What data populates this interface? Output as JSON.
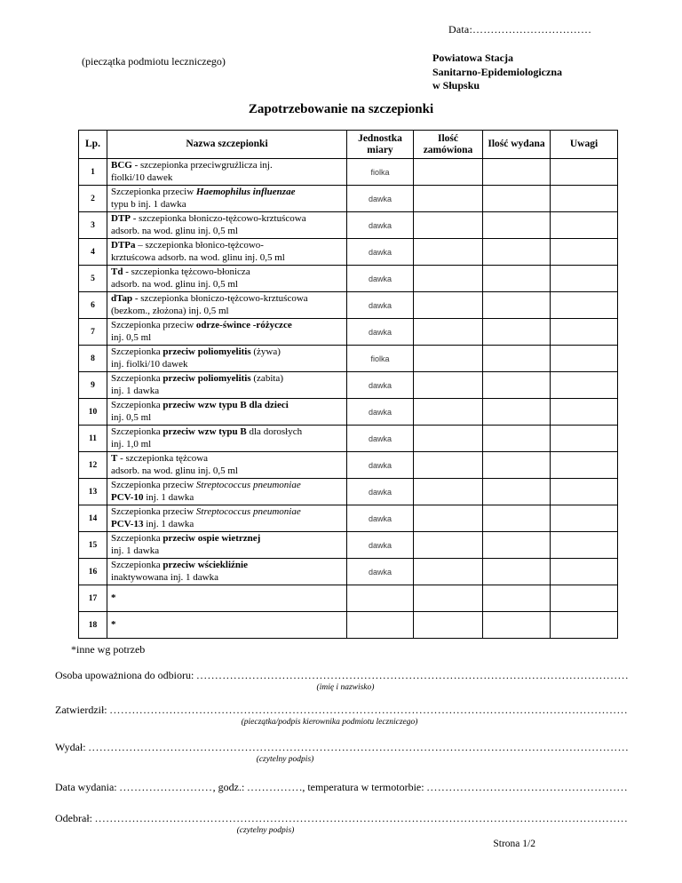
{
  "page": {
    "date_label": "Data:",
    "date_dots": "……………………………",
    "stamp_note": "(pieczątka podmiotu leczniczego)",
    "station_name_lines": [
      "Powiatowa Stacja",
      "Sanitarno-Epidemiologiczna",
      "w Słupsku"
    ],
    "title": "Zapotrzebowanie na szczepionki",
    "footnote": "*inne wg potrzeb",
    "page_number": "Strona 1/2"
  },
  "table": {
    "columns": [
      "Lp.",
      "Nazwa szczepionki",
      "Jednostka miary",
      "Ilość zamówiona",
      "Ilość wydana",
      "Uwagi"
    ],
    "rows": [
      {
        "no": "1",
        "unit": "fiolka",
        "name": [
          [
            {
              "t": "BCG",
              "b": true
            },
            {
              "t": " - szczepionka przeciwgruźlicza inj."
            }
          ],
          [
            {
              "t": "fiolki/10 dawek"
            }
          ]
        ]
      },
      {
        "no": "2",
        "unit": "dawka",
        "name": [
          [
            {
              "t": "Szczepionka przeciw "
            },
            {
              "t": "Haemophilus influenzae",
              "b": true,
              "i": true
            }
          ],
          [
            {
              "t": "typu b inj. 1 dawka"
            }
          ]
        ]
      },
      {
        "no": "3",
        "unit": "dawka",
        "name": [
          [
            {
              "t": "DTP",
              "b": true
            },
            {
              "t": " - szczepionka błoniczo-tężcowo-krztuścowa"
            }
          ],
          [
            {
              "t": "adsorb. na wod. glinu inj. 0,5 ml"
            }
          ]
        ]
      },
      {
        "no": "4",
        "unit": "dawka",
        "name": [
          [
            {
              "t": "DTPa",
              "b": true
            },
            {
              "t": " – szczepionka błonico-tężcowo-"
            }
          ],
          [
            {
              "t": "krztuścowa adsorb. na wod. glinu inj. 0,5 ml"
            }
          ]
        ]
      },
      {
        "no": "5",
        "unit": "dawka",
        "name": [
          [
            {
              "t": "Td",
              "b": true
            },
            {
              "t": " - szczepionka tężcowo-błonicza"
            }
          ],
          [
            {
              "t": "adsorb. na wod. glinu inj. 0,5 ml"
            }
          ]
        ]
      },
      {
        "no": "6",
        "unit": "dawka",
        "name": [
          [
            {
              "t": "dTap",
              "b": true
            },
            {
              "t": " - szczepionka błoniczo-tężcowo-krztuścowa"
            }
          ],
          [
            {
              "t": "(bezkom., złożona) inj. 0,5 ml"
            }
          ]
        ]
      },
      {
        "no": "7",
        "unit": "dawka",
        "name": [
          [
            {
              "t": "Szczepionka przeciw "
            },
            {
              "t": "odrze-śwince -różyczce",
              "b": true
            }
          ],
          [
            {
              "t": "inj. 0,5 ml"
            }
          ]
        ]
      },
      {
        "no": "8",
        "unit": "fiolka",
        "name": [
          [
            {
              "t": "Szczepionka "
            },
            {
              "t": "przeciw poliomyelitis",
              "b": true
            },
            {
              "t": " (żywa)"
            }
          ],
          [
            {
              "t": "inj. fiolki/10 dawek"
            }
          ]
        ]
      },
      {
        "no": "9",
        "unit": "dawka",
        "name": [
          [
            {
              "t": "Szczepionka "
            },
            {
              "t": "przeciw poliomyelitis",
              "b": true
            },
            {
              "t": " (zabita)"
            }
          ],
          [
            {
              "t": "inj. 1 dawka"
            }
          ]
        ]
      },
      {
        "no": "10",
        "unit": "dawka",
        "name": [
          [
            {
              "t": "Szczepionka "
            },
            {
              "t": "przeciw wzw typu B dla dzieci",
              "b": true
            }
          ],
          [
            {
              "t": "inj. 0,5 ml"
            }
          ]
        ]
      },
      {
        "no": "11",
        "unit": "dawka",
        "name": [
          [
            {
              "t": "Szczepionka "
            },
            {
              "t": "przeciw wzw typu B",
              "b": true
            },
            {
              "t": " dla dorosłych"
            }
          ],
          [
            {
              "t": "inj. 1,0 ml"
            }
          ]
        ]
      },
      {
        "no": "12",
        "unit": "dawka",
        "name": [
          [
            {
              "t": "T",
              "b": true
            },
            {
              "t": " - szczepionka tężcowa"
            }
          ],
          [
            {
              "t": "adsorb. na wod. glinu inj. 0,5 ml"
            }
          ]
        ]
      },
      {
        "no": "13",
        "unit": "dawka",
        "name": [
          [
            {
              "t": "Szczepionka przeciw "
            },
            {
              "t": "Streptococcus pneumoniae",
              "i": true
            }
          ],
          [
            {
              "t": "PCV-10",
              "b": true
            },
            {
              "t": " inj. 1 dawka"
            }
          ]
        ]
      },
      {
        "no": "14",
        "unit": "dawka",
        "name": [
          [
            {
              "t": "Szczepionka przeciw "
            },
            {
              "t": "Streptococcus pneumoniae",
              "i": true
            }
          ],
          [
            {
              "t": "PCV-13",
              "b": true
            },
            {
              "t": " inj. 1 dawka"
            }
          ]
        ]
      },
      {
        "no": "15",
        "unit": "dawka",
        "name": [
          [
            {
              "t": "Szczepionka "
            },
            {
              "t": "przeciw ospie wietrznej",
              "b": true
            }
          ],
          [
            {
              "t": "inj. 1 dawka"
            }
          ]
        ]
      },
      {
        "no": "16",
        "unit": "dawka",
        "name": [
          [
            {
              "t": "Szczepionka "
            },
            {
              "t": "przeciw wściekliźnie",
              "b": true
            }
          ],
          [
            {
              "t": "inaktywowana inj. 1 dawka"
            }
          ]
        ]
      },
      {
        "no": "17",
        "unit": "",
        "name": [
          [
            {
              "t": "*",
              "b": true
            }
          ]
        ]
      },
      {
        "no": "18",
        "unit": "",
        "name": [
          [
            {
              "t": "*",
              "b": true
            }
          ]
        ]
      }
    ]
  },
  "signatures": {
    "authorized": {
      "label": "Osoba upoważniona do odbioru:",
      "caption": "(imię i nazwisko)"
    },
    "approved": {
      "label": "Zatwierdził:",
      "caption": "(pieczątka/podpis kierownika podmiotu leczniczego)"
    },
    "issued_by": {
      "label": "Wydał:",
      "caption": "(czytelny podpis)"
    },
    "issue_details": {
      "date_label": "Data wydania:",
      "time_label": ", godz.:",
      "temp_label": ", temperatura w termotorbie:"
    },
    "received_by": {
      "label": "Odebrał:",
      "caption": "(czytelny podpis)"
    }
  }
}
